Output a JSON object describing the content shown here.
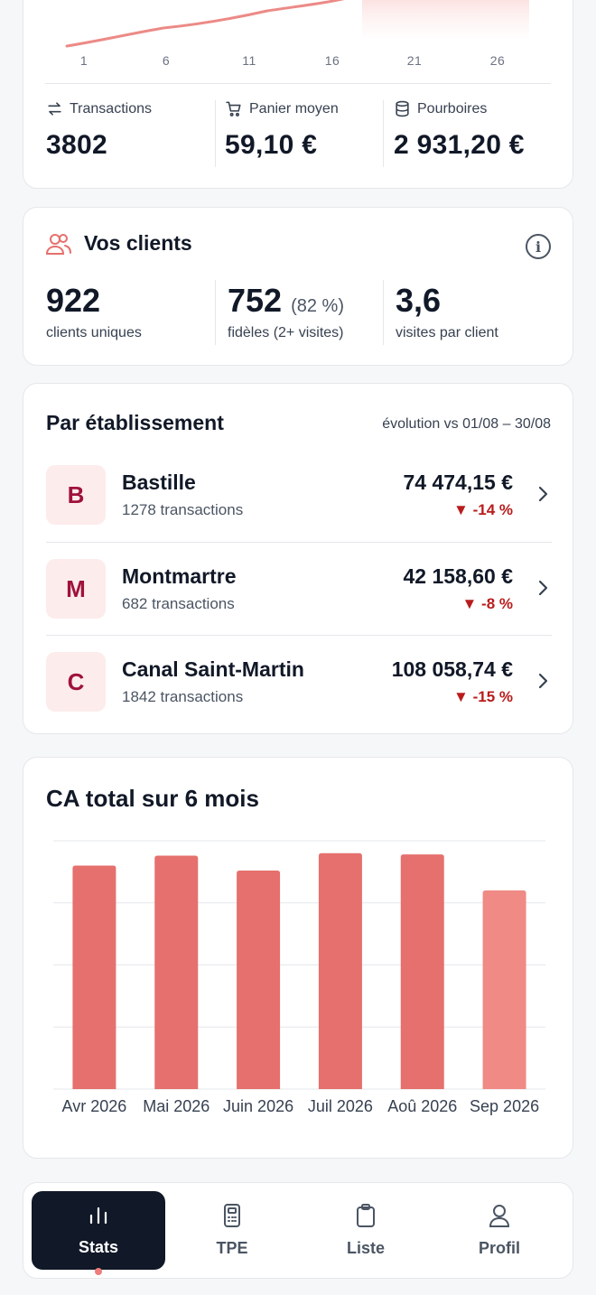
{
  "summary": {
    "day_ticks": [
      "1",
      "6",
      "11",
      "16",
      "21",
      "26"
    ],
    "metrics": [
      {
        "icon": "arrows-swap-icon",
        "label": "Transactions",
        "value": "3802"
      },
      {
        "icon": "cart-icon",
        "label": "Panier moyen",
        "value": "59,10 €"
      },
      {
        "icon": "coins-icon",
        "label": "Pourboires",
        "value": "2 931,20 €"
      }
    ]
  },
  "clients": {
    "title": "Vos clients",
    "info_icon": "info-icon",
    "stats": [
      {
        "value": "922",
        "pct": "",
        "label": "clients uniques"
      },
      {
        "value": "752",
        "pct": "(82 %)",
        "label": "fidèles (2+ visites)"
      },
      {
        "value": "3,6",
        "pct": "",
        "label": "visites par client"
      }
    ]
  },
  "establishments": {
    "title": "Par établissement",
    "subtitle": "évolution vs 01/08 – 30/08",
    "items": [
      {
        "initial": "B",
        "name": "Bastille",
        "transactions": "1278 transactions",
        "amount": "74 474,15 €",
        "delta": "▼ -14 %"
      },
      {
        "initial": "M",
        "name": "Montmartre",
        "transactions": "682 transactions",
        "amount": "42 158,60 €",
        "delta": "▼ -8 %"
      },
      {
        "initial": "C",
        "name": "Canal Saint-Martin",
        "transactions": "1842 transactions",
        "amount": "108 058,74 €",
        "delta": "▼ -15 %"
      }
    ]
  },
  "revenue_chart": {
    "title": "CA total sur 6 mois"
  },
  "chart_data": {
    "type": "bar",
    "title": "CA total sur 6 mois",
    "categories": [
      "Avr 2026",
      "Mai 2026",
      "Juin 2026",
      "Juil 2026",
      "Aoû 2026",
      "Sep 2026"
    ],
    "values": [
      0.9,
      0.94,
      0.88,
      0.95,
      0.945,
      0.8
    ],
    "ylim": [
      0,
      1
    ],
    "grid": true,
    "colors": [
      "#e5706d",
      "#e5706d",
      "#e5706d",
      "#e5706d",
      "#e5706d",
      "#f08a85"
    ]
  },
  "nav": {
    "items": [
      {
        "label": "Stats",
        "icon": "bar-chart-icon",
        "active": true
      },
      {
        "label": "TPE",
        "icon": "card-terminal-icon",
        "active": false
      },
      {
        "label": "Liste",
        "icon": "clipboard-icon",
        "active": false
      },
      {
        "label": "Profil",
        "icon": "user-icon",
        "active": false
      }
    ]
  },
  "colors": {
    "accent": "#e5706d",
    "negative": "#b91c1c",
    "avatar_bg": "#fdecec",
    "avatar_text": "#9f1239",
    "nav_active": "#111827"
  }
}
